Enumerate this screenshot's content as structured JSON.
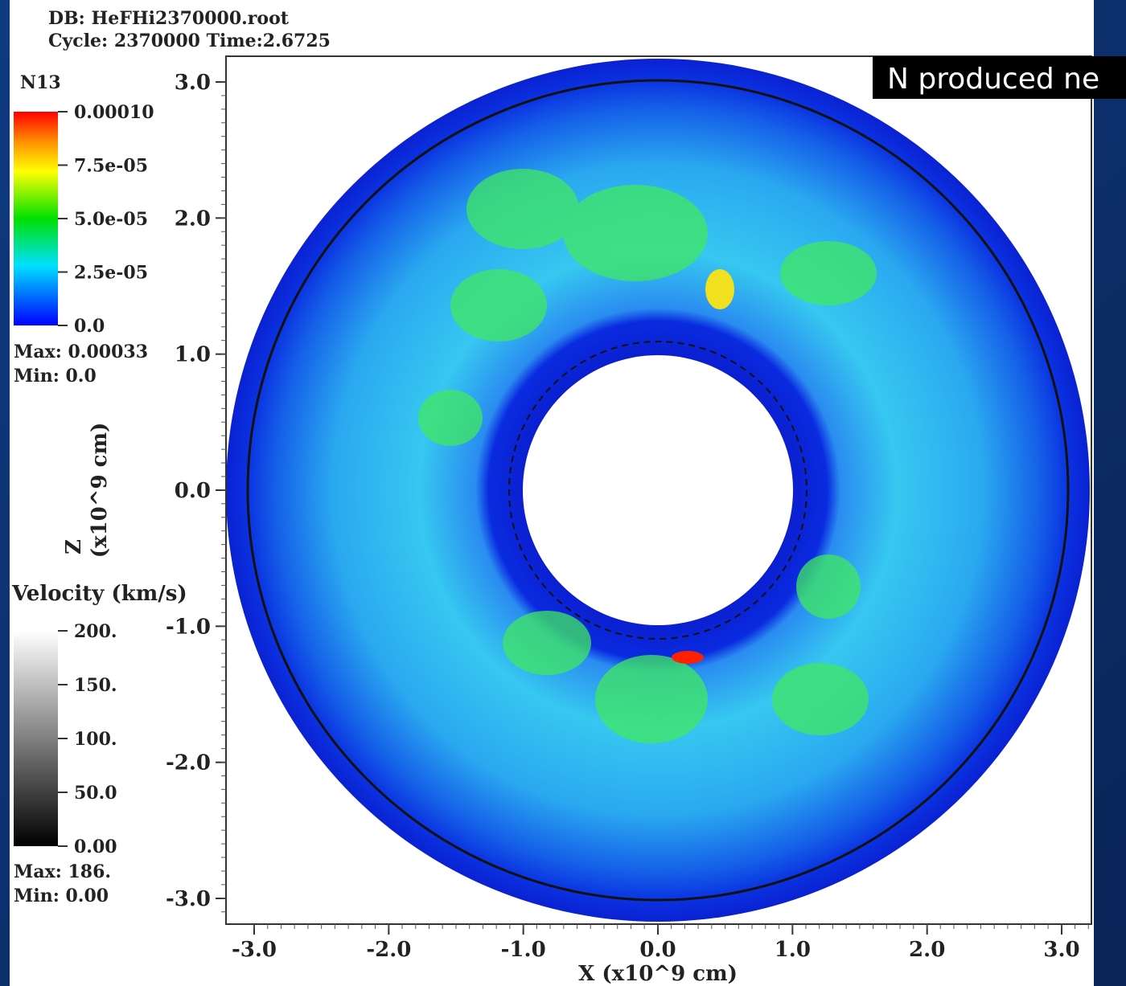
{
  "header": {
    "db": "DB: HeFHi2370000.root",
    "cycle": "Cycle: 2370000  Time:2.6725"
  },
  "colorbar": {
    "title": "N13",
    "labels": [
      "0.00010",
      "7.5e-05",
      "5.0e-05",
      "2.5e-05",
      "0.0"
    ],
    "max": "Max:  0.00033",
    "min": "Min:  0.0"
  },
  "velocity_bar": {
    "title": "Velocity (km/s)",
    "labels": [
      "200.",
      "150.",
      "100.",
      "50.0",
      "0.00"
    ],
    "max": "Max:  186.",
    "min": "Min:  0.00"
  },
  "axes": {
    "y_title": "Z",
    "y_units": "(x10^9 cm)",
    "x_title": "X (x10^9 cm)",
    "y_ticks": [
      "3.0",
      "2.0",
      "1.0",
      "0.0",
      "-1.0",
      "-2.0",
      "-3.0"
    ],
    "x_ticks": [
      "-3.0",
      "-2.0",
      "-1.0",
      "0.0",
      "1.0",
      "2.0",
      "3.0"
    ]
  },
  "annotation": "N produced ne"
}
